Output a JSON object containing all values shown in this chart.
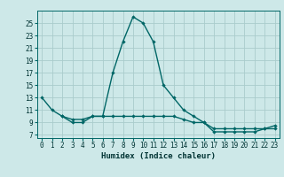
{
  "xlabel": "Humidex (Indice chaleur)",
  "background_color": "#cde8e8",
  "line_color": "#006666",
  "grid_color": "#aacccc",
  "x_ticks": [
    0,
    1,
    2,
    3,
    4,
    5,
    6,
    7,
    8,
    9,
    10,
    11,
    12,
    13,
    14,
    15,
    16,
    17,
    18,
    19,
    20,
    21,
    22,
    23
  ],
  "y_ticks": [
    7,
    9,
    11,
    13,
    15,
    17,
    19,
    21,
    23,
    25
  ],
  "ylim": [
    6.5,
    27.0
  ],
  "xlim": [
    -0.5,
    23.5
  ],
  "line1_x": [
    0,
    1,
    2,
    3,
    4,
    5,
    6,
    7,
    8,
    9,
    10,
    11,
    12,
    13,
    14,
    15,
    16,
    17,
    18,
    19,
    20,
    21,
    22,
    23
  ],
  "line1_y": [
    13,
    11,
    10,
    9,
    9,
    10,
    10,
    17,
    22,
    26,
    25,
    22,
    15,
    13,
    11,
    10,
    9,
    8,
    8,
    8,
    8,
    8,
    8,
    8
  ],
  "line2_x": [
    2,
    3,
    4,
    5,
    6,
    7,
    8,
    9,
    10,
    11,
    12,
    13,
    14,
    15,
    16,
    17,
    18,
    19,
    20,
    21,
    22,
    23
  ],
  "line2_y": [
    10,
    9.5,
    9.5,
    10,
    10,
    10,
    10,
    10,
    10,
    10,
    10,
    10,
    9.5,
    9,
    9,
    7.5,
    7.5,
    7.5,
    7.5,
    7.5,
    8,
    8.5
  ],
  "font_family": "monospace",
  "xlabel_fontsize": 6.5,
  "tick_fontsize": 5.5,
  "linewidth": 1.0,
  "markersize": 2.2
}
